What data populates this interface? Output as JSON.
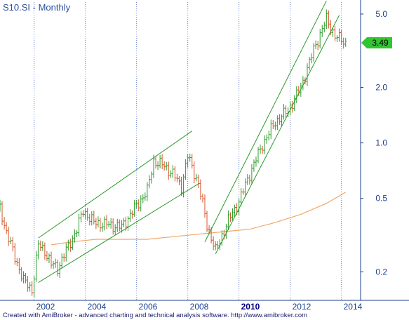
{
  "colors": {
    "background": "#ffffff",
    "frame": "#1a3f8e",
    "grid": "#6c85c4",
    "up_bar": "#2e9d2e",
    "down_bar": "#d4552a",
    "channel": "#2a9a2a",
    "moving_average": "#f0a868",
    "badge": "#31c531",
    "text": "#1a3f8e"
  },
  "footer_text": "Created with AmiBroker - advanced charting and technical analysis software. http://www.amibroker.com",
  "chart_data": {
    "type": "ohlc",
    "title": "S10.SI - Monthly",
    "xlabel": "",
    "ylabel": "",
    "y_scale": "log",
    "ylim": [
      0.14,
      5.8
    ],
    "xlim": [
      "2000-09",
      "2014-10"
    ],
    "y_ticks": [
      {
        "value": 5.0,
        "label": "5.0"
      },
      {
        "value": 2.0,
        "label": "2.0"
      },
      {
        "value": 1.0,
        "label": "1.0"
      },
      {
        "value": 0.5,
        "label": "0.5"
      },
      {
        "value": 0.2,
        "label": "0.2"
      }
    ],
    "x_ticks": [
      {
        "date": "2002-01",
        "label": "2002",
        "bold": false
      },
      {
        "date": "2004-01",
        "label": "2004",
        "bold": false
      },
      {
        "date": "2006-01",
        "label": "2006",
        "bold": false
      },
      {
        "date": "2008-01",
        "label": "2008",
        "bold": false
      },
      {
        "date": "2010-01",
        "label": "2010",
        "bold": true
      },
      {
        "date": "2012-01",
        "label": "2012",
        "bold": false
      },
      {
        "date": "2014-01",
        "label": "2014",
        "bold": false
      }
    ],
    "grid": true,
    "last_price": {
      "label": "3.49",
      "value": 3.49
    },
    "close_path": [
      [
        "2000-09",
        0.44
      ],
      [
        "2000-12",
        0.33
      ],
      [
        "2001-04",
        0.24
      ],
      [
        "2001-08",
        0.18
      ],
      [
        "2001-12",
        0.16
      ],
      [
        "2002-03",
        0.28
      ],
      [
        "2002-06",
        0.26
      ],
      [
        "2002-09",
        0.22
      ],
      [
        "2002-12",
        0.21
      ],
      [
        "2003-04",
        0.26
      ],
      [
        "2003-09",
        0.34
      ],
      [
        "2003-12",
        0.43
      ],
      [
        "2004-05",
        0.37
      ],
      [
        "2004-12",
        0.36
      ],
      [
        "2005-06",
        0.35
      ],
      [
        "2005-12",
        0.44
      ],
      [
        "2006-06",
        0.55
      ],
      [
        "2006-09",
        0.8
      ],
      [
        "2007-02",
        0.75
      ],
      [
        "2007-06",
        0.68
      ],
      [
        "2007-10",
        0.58
      ],
      [
        "2008-01",
        0.85
      ],
      [
        "2008-06",
        0.6
      ],
      [
        "2008-10",
        0.36
      ],
      [
        "2009-02",
        0.26
      ],
      [
        "2009-08",
        0.38
      ],
      [
        "2010-01",
        0.48
      ],
      [
        "2010-06",
        0.68
      ],
      [
        "2010-12",
        0.98
      ],
      [
        "2011-06",
        1.3
      ],
      [
        "2011-12",
        1.5
      ],
      [
        "2012-06",
        2.0
      ],
      [
        "2012-12",
        3.2
      ],
      [
        "2013-06",
        4.7
      ],
      [
        "2013-10",
        3.8
      ],
      [
        "2014-03",
        3.49
      ]
    ],
    "moving_average": [
      [
        "2002-09",
        0.28
      ],
      [
        "2003-06",
        0.29
      ],
      [
        "2004-06",
        0.3
      ],
      [
        "2005-06",
        0.3
      ],
      [
        "2006-06",
        0.3
      ],
      [
        "2007-06",
        0.31
      ],
      [
        "2008-06",
        0.32
      ],
      [
        "2009-06",
        0.33
      ],
      [
        "2010-06",
        0.34
      ],
      [
        "2011-06",
        0.37
      ],
      [
        "2012-06",
        0.41
      ],
      [
        "2013-06",
        0.47
      ],
      [
        "2014-03",
        0.54
      ]
    ],
    "channels": [
      {
        "start": [
          "2002-03",
          0.305
        ],
        "end": [
          "2008-03",
          1.16
        ]
      },
      {
        "start": [
          "2002-03",
          0.175
        ],
        "end": [
          "2008-06",
          0.6
        ]
      },
      {
        "start": [
          "2008-09",
          0.29
        ],
        "end": [
          "2013-06",
          5.9
        ]
      },
      {
        "start": [
          "2009-02",
          0.25
        ],
        "end": [
          "2013-12",
          4.92
        ]
      }
    ]
  }
}
